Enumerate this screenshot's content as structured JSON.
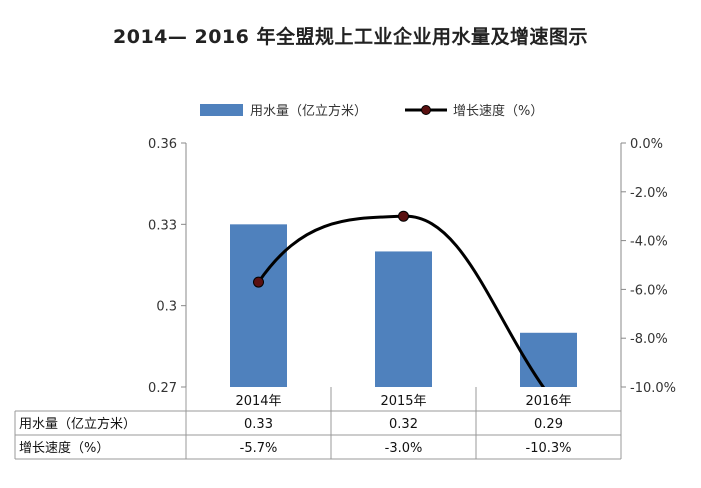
{
  "title": "2014— 2016 年全盟规上工业企业用水量及增速图示",
  "chart_data": {
    "type": "bar",
    "categories": [
      "2014年",
      "2015年",
      "2016年"
    ],
    "series": [
      {
        "name": "用水量（亿立方米）",
        "type": "bar",
        "axis": "left",
        "color": "#4f81bd",
        "values": [
          0.33,
          0.32,
          0.29
        ],
        "labels": [
          "0.33",
          "0.32",
          "0.29"
        ]
      },
      {
        "name": "增长速度（%）",
        "type": "line",
        "axis": "right",
        "color": "#000000",
        "values": [
          -5.7,
          -3.0,
          -10.3
        ],
        "labels": [
          "-5.7%",
          "-3.0%",
          "-10.3%"
        ]
      }
    ],
    "ylim_left": [
      0.27,
      0.36
    ],
    "ylim_right": [
      -10.0,
      0.0
    ],
    "left_ticks": [
      {
        "value": 0.36,
        "label": "0.36"
      },
      {
        "value": 0.33,
        "label": "0.33"
      },
      {
        "value": 0.3,
        "label": "0.3"
      },
      {
        "value": 0.27,
        "label": "0.27"
      }
    ],
    "right_ticks": [
      {
        "value": 0.0,
        "label": "0.0%"
      },
      {
        "value": -2.0,
        "label": "-2.0%"
      },
      {
        "value": -4.0,
        "label": "-4.0%"
      },
      {
        "value": -6.0,
        "label": "-6.0%"
      },
      {
        "value": -8.0,
        "label": "-8.0%"
      },
      {
        "value": -10.0,
        "label": "-10.0%"
      }
    ],
    "legend_position": "top",
    "grid": false,
    "data_table": true
  }
}
